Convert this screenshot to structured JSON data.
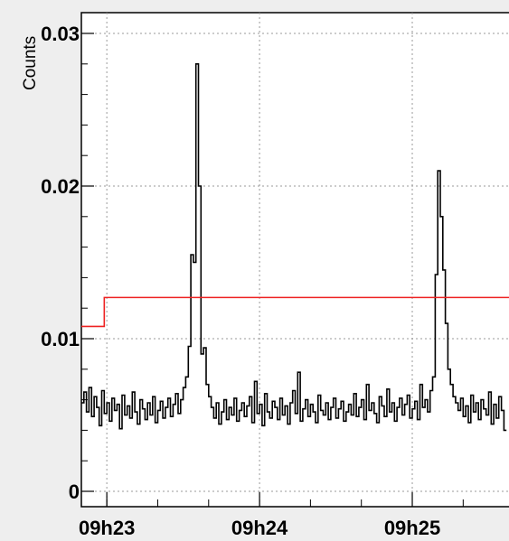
{
  "chart_data": {
    "type": "line",
    "title": "",
    "xlabel": "",
    "ylabel": "Counts",
    "ylim": [
      0,
      0.031
    ],
    "xlim": [
      "09h22:50",
      "09h25:38"
    ],
    "y_ticks": [
      0,
      0.01,
      0.02,
      0.03
    ],
    "y_tick_labels": [
      "0",
      "0.01",
      "0.02",
      "0.03"
    ],
    "x_ticks": [
      "09h23",
      "09h24",
      "09h25"
    ],
    "grid": true,
    "series": [
      {
        "color": "#000000",
        "step": true,
        "x_start": "09h22:50",
        "bin_seconds": 1,
        "values": [
          0.0058,
          0.0065,
          0.0052,
          0.0068,
          0.0049,
          0.0062,
          0.0055,
          0.0043,
          0.0066,
          0.0051,
          0.0058,
          0.0046,
          0.0061,
          0.0053,
          0.0057,
          0.0041,
          0.0063,
          0.005,
          0.0056,
          0.0048,
          0.0065,
          0.0052,
          0.0044,
          0.006,
          0.0054,
          0.0047,
          0.0058,
          0.005,
          0.0062,
          0.0045,
          0.0053,
          0.0059,
          0.0048,
          0.0055,
          0.0061,
          0.0049,
          0.0057,
          0.0064,
          0.0051,
          0.006,
          0.0068,
          0.0075,
          0.0095,
          0.0155,
          0.015,
          0.028,
          0.02,
          0.009,
          0.0094,
          0.007,
          0.0062,
          0.0055,
          0.0048,
          0.0058,
          0.0044,
          0.0052,
          0.006,
          0.0047,
          0.0055,
          0.005,
          0.0061,
          0.0046,
          0.0053,
          0.0058,
          0.0049,
          0.0056,
          0.0062,
          0.0045,
          0.0072,
          0.0051,
          0.0057,
          0.0043,
          0.0064,
          0.0052,
          0.0048,
          0.0059,
          0.0055,
          0.0047,
          0.0061,
          0.005,
          0.0056,
          0.0044,
          0.0058,
          0.0066,
          0.0051,
          0.0078,
          0.0046,
          0.0054,
          0.006,
          0.0049,
          0.0057,
          0.0052,
          0.0045,
          0.0063,
          0.0053,
          0.005,
          0.0058,
          0.0047,
          0.0055,
          0.0061,
          0.0048,
          0.0054,
          0.0059,
          0.0046,
          0.0052,
          0.0057,
          0.005,
          0.0064,
          0.0049,
          0.0055,
          0.006,
          0.0047,
          0.007,
          0.0053,
          0.0058,
          0.0051,
          0.0045,
          0.0062,
          0.0056,
          0.0049,
          0.0067,
          0.0052,
          0.0058,
          0.0046,
          0.0055,
          0.0061,
          0.005,
          0.0057,
          0.0063,
          0.0048,
          0.0054,
          0.0059,
          0.0047,
          0.007,
          0.0055,
          0.006,
          0.0052,
          0.0066,
          0.0075,
          0.0142,
          0.021,
          0.018,
          0.0145,
          0.011,
          0.008,
          0.007,
          0.0062,
          0.0058,
          0.0053,
          0.0061,
          0.0049,
          0.0056,
          0.0045,
          0.0063,
          0.0052,
          0.0058,
          0.0047,
          0.006,
          0.0054,
          0.005,
          0.0065,
          0.0044,
          0.0057,
          0.0048,
          0.0062,
          0.0053,
          0.004
        ]
      },
      {
        "color": "#ee2222",
        "step": true,
        "segments": [
          {
            "x_from": "09h22:50",
            "x_to": "09h22:59",
            "y": 0.0108
          },
          {
            "x_from": "09h22:59",
            "x_to": "09h25:38",
            "y": 0.0127
          }
        ]
      }
    ]
  }
}
